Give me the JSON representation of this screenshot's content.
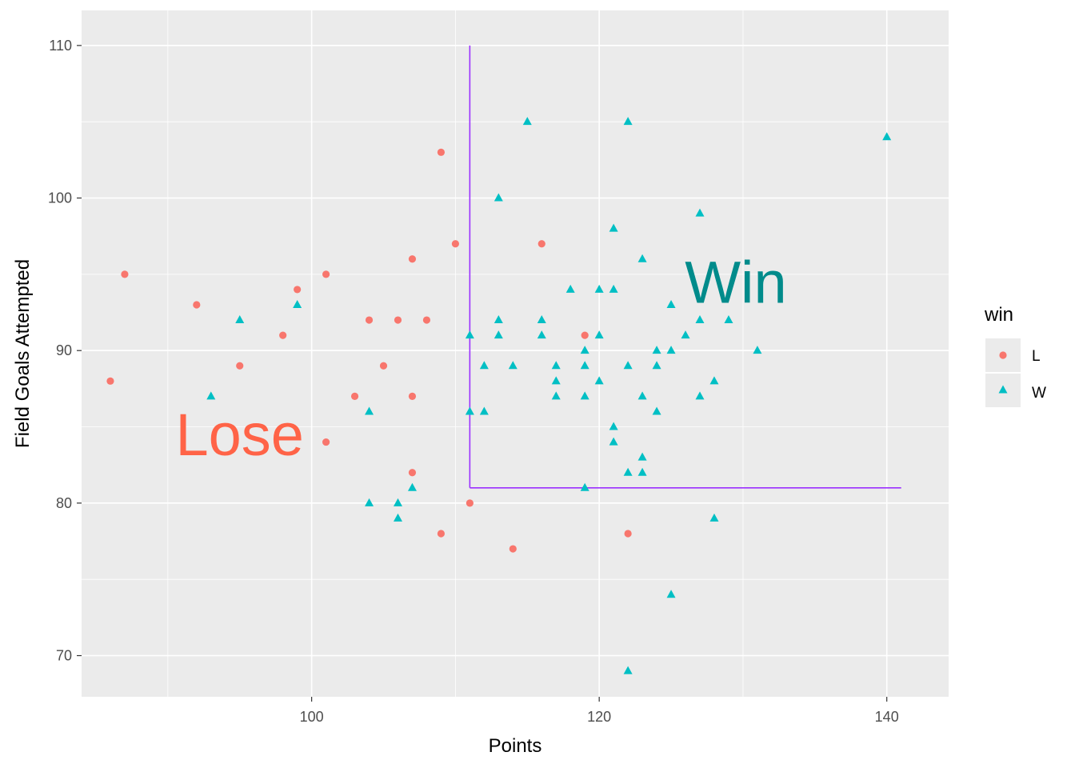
{
  "chart_data": {
    "type": "scatter",
    "xlabel": "Points",
    "ylabel": "Field Goals Attempted",
    "xlim": [
      84.0,
      144.3
    ],
    "ylim": [
      67.3,
      112.3
    ],
    "x_ticks": [
      100,
      120,
      140
    ],
    "y_ticks": [
      70,
      80,
      90,
      100,
      110
    ],
    "grid": true,
    "legend": {
      "title": "win",
      "position": "right",
      "entries": [
        "L",
        "W"
      ]
    },
    "colors": {
      "L": "#F8766D",
      "W": "#00BFC4",
      "panel": "#EBEBEB",
      "line": "#9B30FF",
      "lose_text": "#FF6347",
      "win_text": "#008B8B"
    },
    "series": [
      {
        "name": "L",
        "shape": "circle",
        "points": [
          [
            86,
            88
          ],
          [
            87,
            95
          ],
          [
            92,
            93
          ],
          [
            95,
            89
          ],
          [
            98,
            91
          ],
          [
            99,
            94
          ],
          [
            101,
            95
          ],
          [
            101,
            84
          ],
          [
            103,
            87
          ],
          [
            104,
            92
          ],
          [
            105,
            89
          ],
          [
            106,
            92
          ],
          [
            107,
            96
          ],
          [
            107,
            87
          ],
          [
            107,
            82
          ],
          [
            108,
            92
          ],
          [
            109,
            103
          ],
          [
            109,
            78
          ],
          [
            110,
            97
          ],
          [
            111,
            80
          ],
          [
            114,
            77
          ],
          [
            116,
            97
          ],
          [
            119,
            91
          ],
          [
            122,
            78
          ]
        ]
      },
      {
        "name": "W",
        "shape": "triangle",
        "points": [
          [
            93,
            87
          ],
          [
            95,
            92
          ],
          [
            99,
            93
          ],
          [
            104,
            86
          ],
          [
            104,
            80
          ],
          [
            106,
            80
          ],
          [
            106,
            79
          ],
          [
            107,
            81
          ],
          [
            111,
            91
          ],
          [
            111,
            86
          ],
          [
            112,
            89
          ],
          [
            112,
            86
          ],
          [
            113,
            100
          ],
          [
            113,
            92
          ],
          [
            113,
            91
          ],
          [
            114,
            89
          ],
          [
            115,
            105
          ],
          [
            116,
            92
          ],
          [
            116,
            91
          ],
          [
            117,
            89
          ],
          [
            117,
            88
          ],
          [
            117,
            87
          ],
          [
            118,
            94
          ],
          [
            119,
            90
          ],
          [
            119,
            89
          ],
          [
            119,
            87
          ],
          [
            119,
            81
          ],
          [
            120,
            94
          ],
          [
            120,
            91
          ],
          [
            120,
            88
          ],
          [
            121,
            98
          ],
          [
            121,
            94
          ],
          [
            121,
            85
          ],
          [
            121,
            84
          ],
          [
            122,
            105
          ],
          [
            122,
            89
          ],
          [
            122,
            82
          ],
          [
            122,
            69
          ],
          [
            123,
            96
          ],
          [
            123,
            87
          ],
          [
            123,
            83
          ],
          [
            123,
            82
          ],
          [
            124,
            90
          ],
          [
            124,
            89
          ],
          [
            124,
            86
          ],
          [
            125,
            93
          ],
          [
            125,
            90
          ],
          [
            125,
            74
          ],
          [
            126,
            91
          ],
          [
            127,
            99
          ],
          [
            127,
            92
          ],
          [
            127,
            87
          ],
          [
            128,
            88
          ],
          [
            128,
            79
          ],
          [
            129,
            92
          ],
          [
            131,
            90
          ],
          [
            140,
            104
          ]
        ]
      }
    ],
    "segments": [
      {
        "from": [
          111,
          110
        ],
        "to": [
          111,
          81
        ]
      },
      {
        "from": [
          111,
          81
        ],
        "to": [
          141,
          81
        ]
      }
    ],
    "annotations": [
      {
        "text": "Lose",
        "x": 95,
        "y": 84.5,
        "color": "#FF6347"
      },
      {
        "text": "Win",
        "x": 129.5,
        "y": 94.5,
        "color": "#008B8B"
      }
    ]
  }
}
